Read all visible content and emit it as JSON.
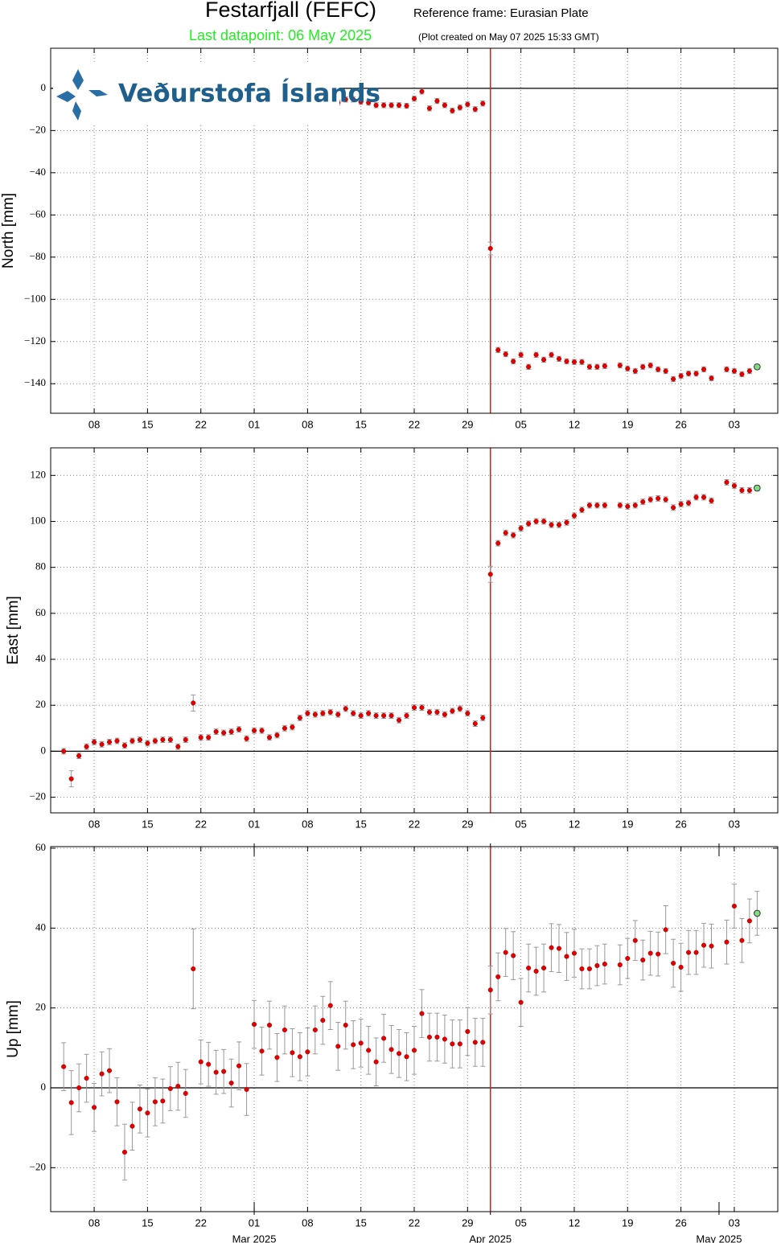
{
  "header": {
    "title": "Festarfjall (FEFC)",
    "reference_frame": "Reference frame: Eurasian Plate",
    "last_datapoint": "Last datapoint: 06 May 2025",
    "plot_created": "(Plot created on May 07 2025 15:33 GMT)",
    "logo": "Veðurstofa Íslands"
  },
  "chart_data": [
    {
      "type": "scatter",
      "ylabel": "North [mm]",
      "grid": true,
      "zero_line": true,
      "color": "#e00000",
      "last_color": "#7fdc7f",
      "errorbar_color": "#999999",
      "vline": {
        "x": "2025-04-01",
        "color": "#d62020"
      },
      "xlim": [
        "2025-02-02T07:00",
        "2025-05-08T17:00"
      ],
      "ylim": [
        -154,
        19
      ],
      "xticks": [
        {
          "value": "2025-02-08",
          "label": "08"
        },
        {
          "value": "2025-02-15",
          "label": "15"
        },
        {
          "value": "2025-02-22",
          "label": "22"
        },
        {
          "value": "2025-03-01",
          "label": "01"
        },
        {
          "value": "2025-03-08",
          "label": "08"
        },
        {
          "value": "2025-03-15",
          "label": "15"
        },
        {
          "value": "2025-03-22",
          "label": "22"
        },
        {
          "value": "2025-03-29",
          "label": "29"
        },
        {
          "value": "2025-04-05",
          "label": "05"
        },
        {
          "value": "2025-04-12",
          "label": "12"
        },
        {
          "value": "2025-04-19",
          "label": "19"
        },
        {
          "value": "2025-04-26",
          "label": "26"
        },
        {
          "value": "2025-05-03",
          "label": "03"
        }
      ],
      "yticks": [
        0,
        {
          "value": -20,
          "label": "−20"
        },
        {
          "value": -40,
          "label": "−40"
        },
        {
          "value": -60,
          "label": "−60"
        },
        {
          "value": -80,
          "label": "−80"
        },
        {
          "value": -100,
          "label": "−100"
        },
        {
          "value": -120,
          "label": "−120"
        },
        {
          "value": -140,
          "label": "−140"
        }
      ],
      "x": [
        "2025-02-04",
        "2025-02-05",
        "2025-02-06",
        "2025-02-07",
        "2025-02-08",
        "2025-02-09",
        "2025-02-10",
        "2025-02-11",
        "2025-02-12",
        "2025-02-13",
        "2025-02-14",
        "2025-02-15",
        "2025-02-16",
        "2025-02-17",
        "2025-02-18",
        "2025-02-19",
        "2025-02-20",
        "2025-02-21",
        "2025-02-22",
        "2025-02-23",
        "2025-02-24",
        "2025-02-25",
        "2025-02-26",
        "2025-02-27",
        "2025-02-28",
        "2025-03-01",
        "2025-03-02",
        "2025-03-03",
        "2025-03-04",
        "2025-03-05",
        "2025-03-06",
        "2025-03-07",
        "2025-03-08",
        "2025-03-09",
        "2025-03-10",
        "2025-03-11",
        "2025-03-12",
        "2025-03-13",
        "2025-03-14",
        "2025-03-15",
        "2025-03-16",
        "2025-03-17",
        "2025-03-18",
        "2025-03-19",
        "2025-03-20",
        "2025-03-21",
        "2025-03-22",
        "2025-03-23",
        "2025-03-24",
        "2025-03-25",
        "2025-03-26",
        "2025-03-27",
        "2025-03-28",
        "2025-03-29",
        "2025-03-30",
        "2025-03-31",
        "2025-04-01",
        "2025-04-02",
        "2025-04-03",
        "2025-04-04",
        "2025-04-05",
        "2025-04-06",
        "2025-04-07",
        "2025-04-08",
        "2025-04-09",
        "2025-04-10",
        "2025-04-11",
        "2025-04-12",
        "2025-04-13",
        "2025-04-14",
        "2025-04-15",
        "2025-04-16",
        "2025-04-17",
        "2025-04-18",
        "2025-04-19",
        "2025-04-20",
        "2025-04-21",
        "2025-04-22",
        "2025-04-23",
        "2025-04-24",
        "2025-04-25",
        "2025-04-26",
        "2025-04-27",
        "2025-04-28",
        "2025-04-29",
        "2025-04-30",
        "2025-05-01",
        "2025-05-02",
        "2025-05-03",
        "2025-05-04",
        "2025-05-05",
        "2025-05-06"
      ],
      "values": [
        null,
        null,
        null,
        null,
        null,
        null,
        null,
        null,
        null,
        null,
        null,
        null,
        null,
        null,
        null,
        null,
        null,
        null,
        null,
        null,
        null,
        null,
        null,
        null,
        null,
        null,
        null,
        null,
        null,
        null,
        null,
        null,
        null,
        null,
        null,
        null,
        -6.8,
        -5.3,
        -5.3,
        -6.4,
        -6.8,
        -8,
        -8,
        -8,
        -8,
        -8.3,
        -4.9,
        -1.5,
        -9.5,
        -6,
        -8,
        -10.6,
        -9.1,
        -7.6,
        -9.9,
        -7.2,
        -75.9,
        -124,
        -126,
        -129.4,
        -126.3,
        -132,
        -126.3,
        -128.6,
        -126.3,
        -128.2,
        -129.4,
        -129.7,
        -129.7,
        -132,
        -132,
        -131.6,
        null,
        -131.3,
        -132.8,
        -134,
        -132,
        -131.3,
        -133.2,
        -134,
        -137.8,
        -136.3,
        -135.2,
        -135.2,
        -133.2,
        -137.4,
        null,
        -133.2,
        -134,
        -135.5,
        -134,
        -132
      ],
      "errors": [
        null,
        null,
        null,
        null,
        null,
        null,
        null,
        null,
        null,
        null,
        null,
        null,
        null,
        null,
        null,
        null,
        null,
        null,
        null,
        null,
        null,
        null,
        null,
        null,
        null,
        null,
        null,
        null,
        null,
        null,
        null,
        null,
        null,
        null,
        null,
        null,
        1.2,
        1.2,
        1.2,
        1.2,
        1.2,
        1.2,
        1.2,
        1.2,
        1.2,
        1.2,
        1.2,
        1.2,
        1.2,
        1.2,
        1.2,
        1.2,
        1.2,
        1.2,
        1.2,
        1.2,
        3,
        1.2,
        1.2,
        1.2,
        1.2,
        1.2,
        1.2,
        1.2,
        1.2,
        1.2,
        1.2,
        1.2,
        1.2,
        1.2,
        1.2,
        1.2,
        null,
        1.2,
        1.2,
        1.2,
        1.2,
        1.2,
        1.2,
        1.2,
        1.2,
        1.2,
        1.2,
        1.2,
        1.2,
        1.2,
        null,
        1.2,
        1.2,
        1.2,
        1.2,
        1.2
      ]
    },
    {
      "type": "scatter",
      "ylabel": "East [mm]",
      "grid": true,
      "zero_line": true,
      "color": "#e00000",
      "last_color": "#7fdc7f",
      "errorbar_color": "#999999",
      "vline": {
        "x": "2025-04-01",
        "color": "#d62020"
      },
      "xlim": [
        "2025-02-02T07:00",
        "2025-05-08T17:00"
      ],
      "ylim": [
        -26.8,
        132
      ],
      "xticks": [
        {
          "value": "2025-02-08",
          "label": "08"
        },
        {
          "value": "2025-02-15",
          "label": "15"
        },
        {
          "value": "2025-02-22",
          "label": "22"
        },
        {
          "value": "2025-03-01",
          "label": "01"
        },
        {
          "value": "2025-03-08",
          "label": "08"
        },
        {
          "value": "2025-03-15",
          "label": "15"
        },
        {
          "value": "2025-03-22",
          "label": "22"
        },
        {
          "value": "2025-03-29",
          "label": "29"
        },
        {
          "value": "2025-04-05",
          "label": "05"
        },
        {
          "value": "2025-04-12",
          "label": "12"
        },
        {
          "value": "2025-04-19",
          "label": "19"
        },
        {
          "value": "2025-04-26",
          "label": "26"
        },
        {
          "value": "2025-05-03",
          "label": "03"
        }
      ],
      "yticks": [
        {
          "value": -20,
          "label": "−20"
        },
        0,
        20,
        40,
        60,
        80,
        100,
        120
      ],
      "x": [
        "2025-02-04",
        "2025-02-05",
        "2025-02-06",
        "2025-02-07",
        "2025-02-08",
        "2025-02-09",
        "2025-02-10",
        "2025-02-11",
        "2025-02-12",
        "2025-02-13",
        "2025-02-14",
        "2025-02-15",
        "2025-02-16",
        "2025-02-17",
        "2025-02-18",
        "2025-02-19",
        "2025-02-20",
        "2025-02-21",
        "2025-02-22",
        "2025-02-23",
        "2025-02-24",
        "2025-02-25",
        "2025-02-26",
        "2025-02-27",
        "2025-02-28",
        "2025-03-01",
        "2025-03-02",
        "2025-03-03",
        "2025-03-04",
        "2025-03-05",
        "2025-03-06",
        "2025-03-07",
        "2025-03-08",
        "2025-03-09",
        "2025-03-10",
        "2025-03-11",
        "2025-03-12",
        "2025-03-13",
        "2025-03-14",
        "2025-03-15",
        "2025-03-16",
        "2025-03-17",
        "2025-03-18",
        "2025-03-19",
        "2025-03-20",
        "2025-03-21",
        "2025-03-22",
        "2025-03-23",
        "2025-03-24",
        "2025-03-25",
        "2025-03-26",
        "2025-03-27",
        "2025-03-28",
        "2025-03-29",
        "2025-03-30",
        "2025-03-31",
        "2025-04-01",
        "2025-04-02",
        "2025-04-03",
        "2025-04-04",
        "2025-04-05",
        "2025-04-06",
        "2025-04-07",
        "2025-04-08",
        "2025-04-09",
        "2025-04-10",
        "2025-04-11",
        "2025-04-12",
        "2025-04-13",
        "2025-04-14",
        "2025-04-15",
        "2025-04-16",
        "2025-04-17",
        "2025-04-18",
        "2025-04-19",
        "2025-04-20",
        "2025-04-21",
        "2025-04-22",
        "2025-04-23",
        "2025-04-24",
        "2025-04-25",
        "2025-04-26",
        "2025-04-27",
        "2025-04-28",
        "2025-04-29",
        "2025-04-30",
        "2025-05-01",
        "2025-05-02",
        "2025-05-03",
        "2025-05-04",
        "2025-05-05",
        "2025-05-06"
      ],
      "values": [
        0,
        -12,
        -2,
        2,
        4,
        3,
        4,
        4.5,
        2.5,
        4.5,
        5,
        3.5,
        4.5,
        5,
        5,
        2,
        5,
        21,
        6,
        6,
        8.5,
        8,
        8.5,
        9.5,
        5.5,
        9,
        9,
        6,
        7,
        10,
        10.5,
        14.5,
        16.5,
        16,
        16.5,
        17,
        16,
        18.5,
        16.5,
        15.5,
        16.5,
        15.5,
        15.5,
        15.5,
        13.5,
        15.5,
        19,
        19,
        17,
        17,
        16,
        17.5,
        18.5,
        16.5,
        12,
        14.5,
        77,
        90.5,
        95,
        94,
        97,
        99,
        100,
        100,
        98.5,
        98.5,
        99.5,
        102.5,
        105,
        107,
        107,
        107,
        null,
        107,
        106.5,
        107,
        108.5,
        109.5,
        110,
        109.5,
        106,
        107.5,
        108,
        110.5,
        110.5,
        109,
        null,
        117,
        115.5,
        113.5,
        113.5,
        114.5
      ],
      "errors": [
        1.2,
        3.5,
        1.2,
        1.2,
        1.2,
        1.2,
        1.2,
        1.2,
        1.2,
        1.2,
        1.2,
        1.2,
        1.2,
        1.2,
        1.2,
        1.2,
        1.2,
        3.5,
        1.2,
        1.2,
        1.2,
        1.2,
        1.2,
        1.2,
        1.2,
        1.2,
        1.2,
        1.2,
        1.2,
        1.2,
        1.2,
        1.2,
        1.2,
        1.2,
        1.2,
        1.2,
        1.2,
        1.2,
        1.2,
        1.2,
        1.2,
        1.2,
        1.2,
        1.2,
        1.2,
        1.2,
        1.2,
        1.2,
        1.2,
        1.2,
        1.2,
        1.2,
        1.2,
        1.2,
        1.2,
        1.2,
        3.5,
        1.2,
        1.2,
        1.2,
        1.2,
        1.2,
        1.2,
        1.2,
        1.2,
        1.2,
        1.2,
        1.2,
        1.2,
        1.2,
        1.2,
        1.2,
        null,
        1.2,
        1.2,
        1.2,
        1.2,
        1.2,
        1.2,
        1.2,
        1.2,
        1.2,
        1.2,
        1.2,
        1.2,
        1.2,
        null,
        1.2,
        1.2,
        1.2,
        1.2,
        1.2
      ]
    },
    {
      "type": "scatter",
      "ylabel": "Up [mm]",
      "grid": true,
      "zero_line": true,
      "color": "#e00000",
      "last_color": "#7fdc7f",
      "errorbar_color": "#999999",
      "vline": {
        "x": "2025-04-01",
        "color": "#d62020"
      },
      "xlim": [
        "2025-02-02T07:00",
        "2025-05-08T17:00"
      ],
      "ylim": [
        -31,
        60.4
      ],
      "xticks": [
        {
          "value": "2025-02-08",
          "label": "08"
        },
        {
          "value": "2025-02-15",
          "label": "15"
        },
        {
          "value": "2025-02-22",
          "label": "22"
        },
        {
          "value": "2025-03-01",
          "label": "01"
        },
        {
          "value": "2025-03-08",
          "label": "08"
        },
        {
          "value": "2025-03-15",
          "label": "15"
        },
        {
          "value": "2025-03-22",
          "label": "22"
        },
        {
          "value": "2025-03-29",
          "label": "29"
        },
        {
          "value": "2025-04-05",
          "label": "05"
        },
        {
          "value": "2025-04-12",
          "label": "12"
        },
        {
          "value": "2025-04-19",
          "label": "19"
        },
        {
          "value": "2025-04-26",
          "label": "26"
        },
        {
          "value": "2025-05-03",
          "label": "03"
        }
      ],
      "month_ticks": [
        {
          "value": "2025-03-01",
          "label": "Mar 2025"
        },
        {
          "value": "2025-04-01",
          "label": "Apr 2025"
        },
        {
          "value": "2025-05-01",
          "label": "May 2025"
        }
      ],
      "yticks": [
        {
          "value": -20,
          "label": "−20"
        },
        0,
        20,
        40,
        60
      ],
      "x": [
        "2025-02-04",
        "2025-02-05",
        "2025-02-06",
        "2025-02-07",
        "2025-02-08",
        "2025-02-09",
        "2025-02-10",
        "2025-02-11",
        "2025-02-12",
        "2025-02-13",
        "2025-02-14",
        "2025-02-15",
        "2025-02-16",
        "2025-02-17",
        "2025-02-18",
        "2025-02-19",
        "2025-02-20",
        "2025-02-21",
        "2025-02-22",
        "2025-02-23",
        "2025-02-24",
        "2025-02-25",
        "2025-02-26",
        "2025-02-27",
        "2025-02-28",
        "2025-03-01",
        "2025-03-02",
        "2025-03-03",
        "2025-03-04",
        "2025-03-05",
        "2025-03-06",
        "2025-03-07",
        "2025-03-08",
        "2025-03-09",
        "2025-03-10",
        "2025-03-11",
        "2025-03-12",
        "2025-03-13",
        "2025-03-14",
        "2025-03-15",
        "2025-03-16",
        "2025-03-17",
        "2025-03-18",
        "2025-03-19",
        "2025-03-20",
        "2025-03-21",
        "2025-03-22",
        "2025-03-23",
        "2025-03-24",
        "2025-03-25",
        "2025-03-26",
        "2025-03-27",
        "2025-03-28",
        "2025-03-29",
        "2025-03-30",
        "2025-03-31",
        "2025-04-01",
        "2025-04-02",
        "2025-04-03",
        "2025-04-04",
        "2025-04-05",
        "2025-04-06",
        "2025-04-07",
        "2025-04-08",
        "2025-04-09",
        "2025-04-10",
        "2025-04-11",
        "2025-04-12",
        "2025-04-13",
        "2025-04-14",
        "2025-04-15",
        "2025-04-16",
        "2025-04-17",
        "2025-04-18",
        "2025-04-19",
        "2025-04-20",
        "2025-04-21",
        "2025-04-22",
        "2025-04-23",
        "2025-04-24",
        "2025-04-25",
        "2025-04-26",
        "2025-04-27",
        "2025-04-28",
        "2025-04-29",
        "2025-04-30",
        "2025-05-01",
        "2025-05-02",
        "2025-05-03",
        "2025-05-04",
        "2025-05-05",
        "2025-05-06"
      ],
      "values": [
        5.3,
        -3.7,
        0,
        2.4,
        -4.9,
        3.5,
        4.3,
        -3.5,
        -16.1,
        -9.6,
        -5.3,
        -6.3,
        -3.5,
        -3.3,
        -0.2,
        0.4,
        -1.4,
        29.8,
        6.5,
        5.9,
        3.9,
        4.1,
        1.2,
        5.5,
        -0.4,
        15.9,
        9.2,
        15.7,
        7.6,
        14.5,
        8.8,
        7.8,
        9,
        14.5,
        16.9,
        20.6,
        10.4,
        15.7,
        10.8,
        11.2,
        9.4,
        6.5,
        12.4,
        9.6,
        8.6,
        7.8,
        9.4,
        18.6,
        12.7,
        12.7,
        12.2,
        11,
        11,
        14.1,
        11.4,
        11.4,
        24.5,
        27.8,
        33.9,
        33.1,
        21.4,
        30,
        29.2,
        30,
        35.1,
        34.9,
        32.9,
        33.7,
        29.8,
        29.8,
        30.6,
        31,
        null,
        30.8,
        32.4,
        36.9,
        32,
        33.7,
        33.5,
        39.6,
        31.2,
        30.2,
        33.9,
        33.9,
        35.7,
        35.5,
        null,
        36.5,
        45.5,
        36.9,
        41.8,
        43.7
      ],
      "errors": [
        6,
        8,
        6,
        6,
        6,
        5.5,
        5.5,
        6,
        7,
        6,
        6,
        6,
        6,
        5.5,
        5.5,
        6,
        6,
        10,
        5.5,
        5.5,
        5.5,
        5.5,
        6,
        6,
        6.5,
        6,
        6,
        6,
        6,
        6,
        6,
        6,
        6,
        6,
        6,
        6,
        6,
        6,
        6,
        6,
        6,
        6,
        6,
        6,
        6,
        6,
        6,
        6,
        6,
        6,
        6,
        6,
        6,
        6,
        6,
        6,
        6,
        6,
        6,
        6,
        6,
        6,
        6,
        6,
        6,
        6,
        6,
        6,
        5,
        5,
        5,
        5,
        null,
        5,
        5,
        5,
        5,
        5.5,
        5.5,
        6,
        6,
        6,
        5.5,
        5.5,
        5.5,
        5.5,
        null,
        5.5,
        5.5,
        5.5,
        5.5,
        5.5
      ]
    }
  ]
}
